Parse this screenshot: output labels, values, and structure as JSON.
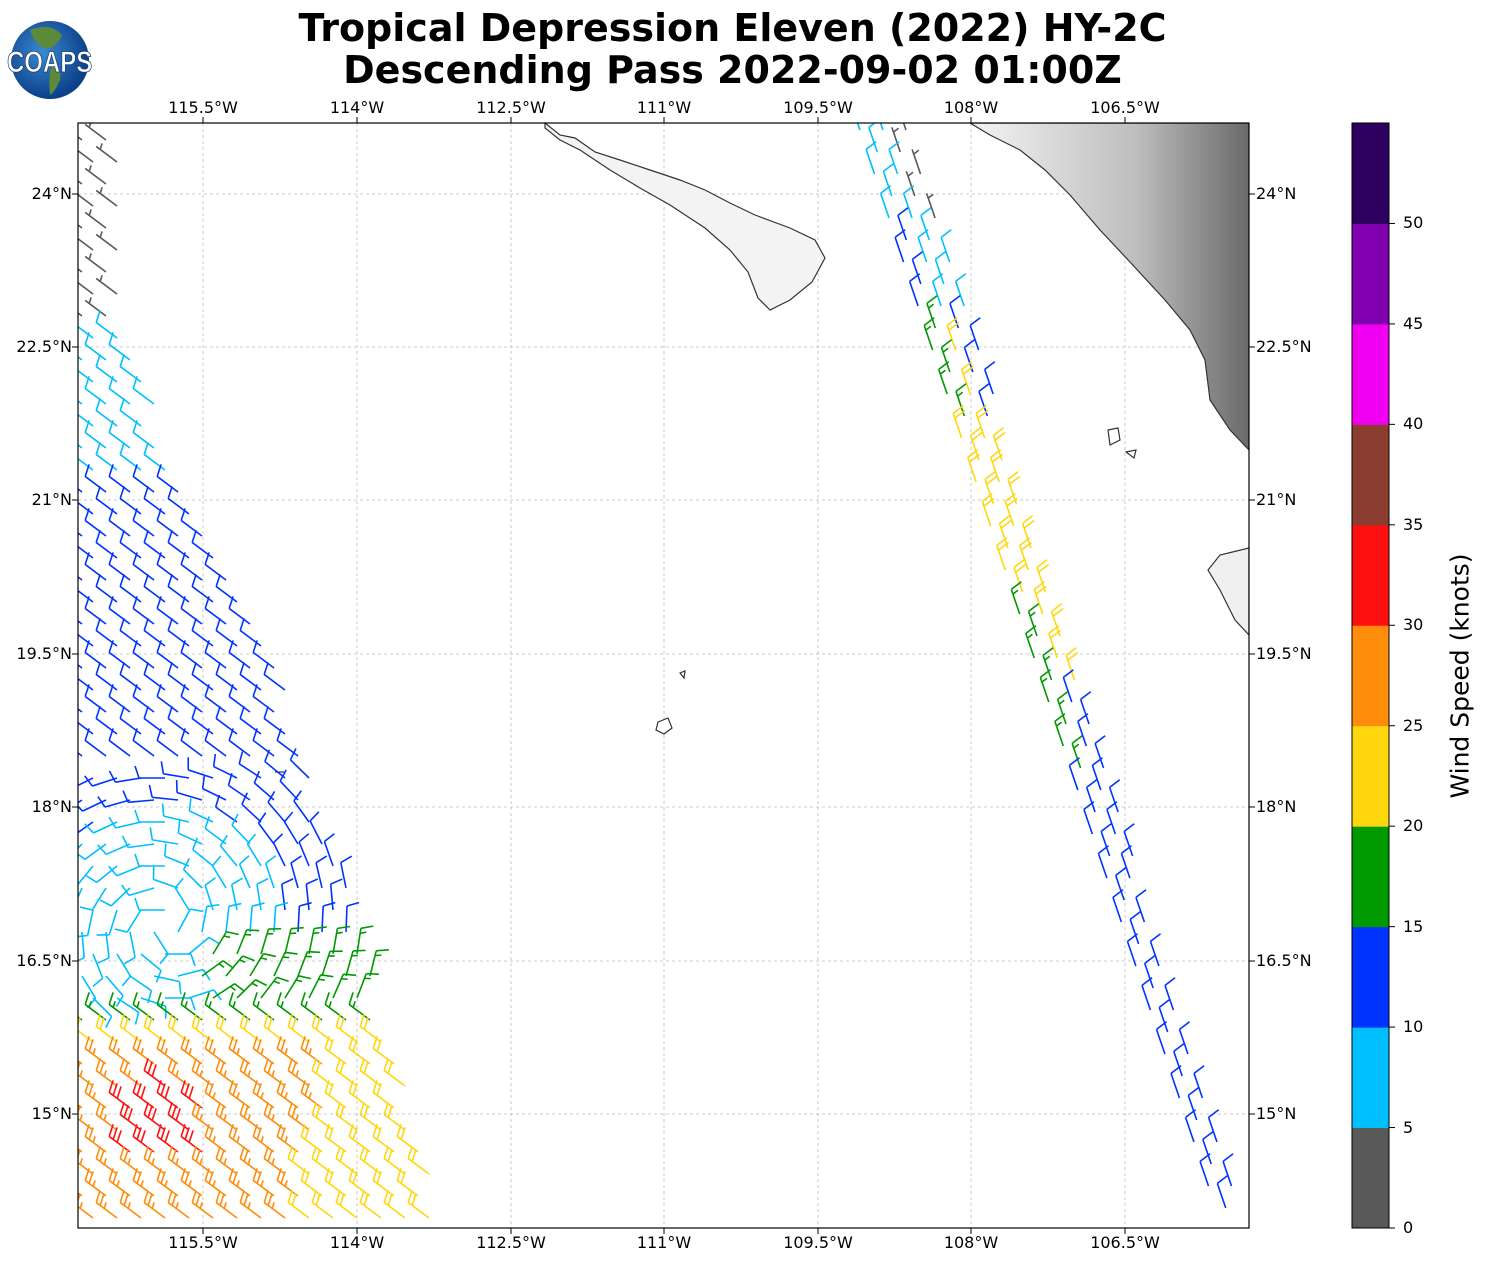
{
  "title": {
    "line1": "Tropical Depression Eleven (2022) HY-2C",
    "line2": "Descending Pass 2022-09-02 01:00Z"
  },
  "logo": {
    "text": "COAPS"
  },
  "map": {
    "lon_ticks": [
      "115.5°W",
      "114°W",
      "112.5°W",
      "111°W",
      "109.5°W",
      "108°W",
      "106.5°W"
    ],
    "lat_ticks": [
      "24°N",
      "22.5°N",
      "21°N",
      "19.5°N",
      "18°N",
      "16.5°N",
      "15°N"
    ]
  },
  "colorbar": {
    "label": "Wind Speed (knots)",
    "ticks": [
      "0",
      "5",
      "10",
      "15",
      "20",
      "25",
      "30",
      "35",
      "40",
      "45",
      "50"
    ],
    "colors": [
      "#595959",
      "#00bfff",
      "#0033ff",
      "#009900",
      "#ffd70f",
      "#ff8c0a",
      "#ff1010",
      "#8b3e2f",
      "#f000f0",
      "#8000b0",
      "#2d0060"
    ]
  }
}
